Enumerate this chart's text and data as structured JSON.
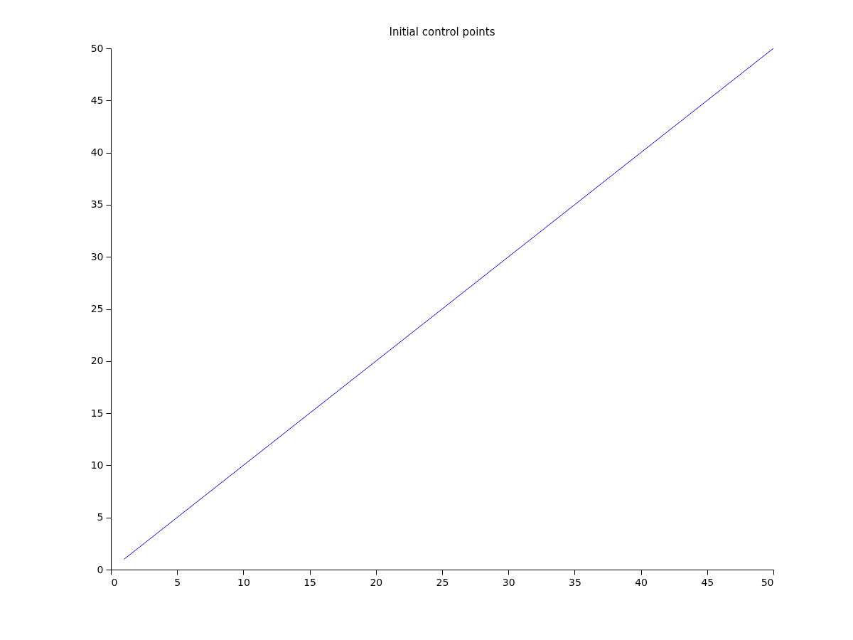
{
  "chart_data": {
    "type": "line",
    "title": "Initial control points",
    "x": [
      1,
      2,
      3,
      4,
      5,
      6,
      7,
      8,
      9,
      10,
      11,
      12,
      13,
      14,
      15,
      16,
      17,
      18,
      19,
      20,
      21,
      22,
      23,
      24,
      25,
      26,
      27,
      28,
      29,
      30,
      31,
      32,
      33,
      34,
      35,
      36,
      37,
      38,
      39,
      40,
      41,
      42,
      43,
      44,
      45,
      46,
      47,
      48,
      49,
      50
    ],
    "series": [
      {
        "color": "#0000ff",
        "values": [
          1,
          2,
          3,
          4,
          5,
          6,
          7,
          8,
          9,
          10,
          11,
          12,
          13,
          14,
          15,
          16,
          17,
          18,
          19,
          20,
          21,
          22,
          23,
          24,
          25,
          26,
          27,
          28,
          29,
          30,
          31,
          32,
          33,
          34,
          35,
          36,
          37,
          38,
          39,
          40,
          41,
          42,
          43,
          44,
          45,
          46,
          47,
          48,
          49,
          50
        ]
      }
    ],
    "xlim": [
      0,
      50
    ],
    "xticks": [
      0,
      5,
      10,
      15,
      20,
      25,
      30,
      35,
      40,
      45,
      50
    ],
    "ylim": [
      0,
      50
    ],
    "yticks": [
      0,
      5,
      10,
      15,
      20,
      25,
      30,
      35,
      40,
      45,
      50
    ],
    "grid": false,
    "marker": "none",
    "line_style": "solid"
  }
}
